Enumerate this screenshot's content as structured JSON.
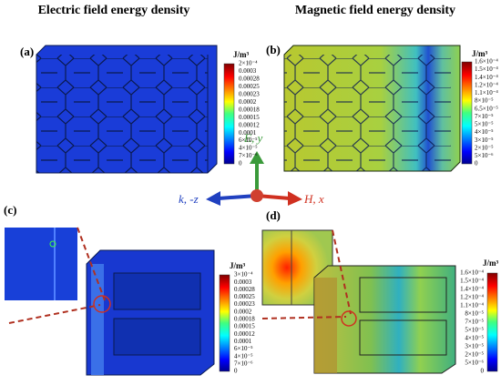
{
  "titles": [
    "Electric  field energy density",
    "Magnetic field energy density"
  ],
  "axes": {
    "e": "E, y",
    "k": "k, -z",
    "h": "H, x"
  },
  "panels": [
    {
      "label": "(a)",
      "unit": "J/m³",
      "ticks": [
        "2×10⁻⁴",
        "0.0003",
        "0.00028",
        "0.00025",
        "0.00023",
        "0.0002",
        "0.00018",
        "0.00015",
        "0.00012",
        "0.0001",
        "6×10⁻⁵",
        "4×10⁻⁵",
        "7×10⁻⁶",
        "0"
      ]
    },
    {
      "label": "(b)",
      "unit": "J/m³",
      "ticks": [
        "1.6×10⁻⁴",
        "1.5×10⁻⁴",
        "1.4×10⁻⁴",
        "1.2×10⁻⁴",
        "1.1×10⁻⁴",
        "8×10⁻⁵",
        "6.5×10⁻⁵",
        "7×10⁻⁵",
        "5×10⁻⁵",
        "4×10⁻⁵",
        "3×10⁻⁵",
        "2×10⁻⁵",
        "5×10⁻⁶",
        "0"
      ]
    },
    {
      "label": "(c)",
      "unit": "J/m³",
      "ticks": [
        "3×10⁻⁴",
        "0.0003",
        "0.00028",
        "0.00025",
        "0.00023",
        "0.0002",
        "0.00018",
        "0.00015",
        "0.00012",
        "0.0001",
        "6×10⁻⁵",
        "4×10⁻⁵",
        "7×10⁻⁶",
        "0"
      ]
    },
    {
      "label": "(d)",
      "unit": "J/m³",
      "ticks": [
        "1.6×10⁻⁴",
        "1.5×10⁻⁴",
        "1.4×10⁻⁴",
        "1.2×10⁻⁴",
        "1.1×10⁻⁴",
        "8×10⁻⁵",
        "7×10⁻⁵",
        "5×10⁻⁵",
        "4×10⁻⁵",
        "3×10⁻⁵",
        "2×10⁻⁵",
        "5×10⁻⁶",
        "0"
      ]
    }
  ]
}
